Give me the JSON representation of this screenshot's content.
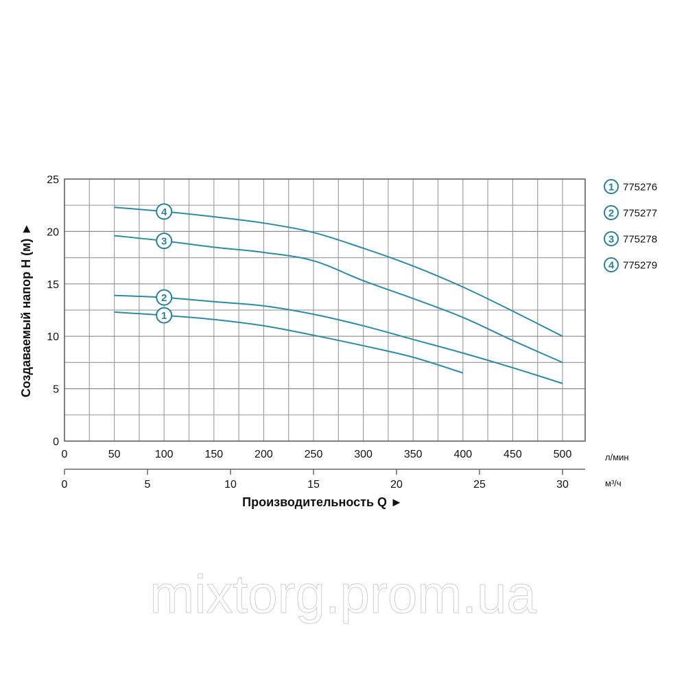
{
  "chart_data": {
    "type": "line",
    "title": "",
    "xlabel": "Производительность Q ►",
    "ylabel": "Создаваемый напор H (м) ►",
    "x_unit_primary": "л/мин",
    "x_unit_secondary": "м³/ч",
    "xlim": [
      0,
      525
    ],
    "ylim": [
      0,
      25
    ],
    "x_ticks": [
      0,
      50,
      100,
      150,
      200,
      250,
      300,
      350,
      400,
      450,
      500
    ],
    "x_secondary_ticks": [
      0,
      5,
      10,
      15,
      20,
      25,
      30
    ],
    "y_ticks": [
      0,
      5,
      10,
      15,
      20,
      25
    ],
    "grid": true,
    "legend_position": "right",
    "series": [
      {
        "name": "775276",
        "marker": "1",
        "x": [
          50,
          100,
          150,
          200,
          250,
          300,
          350,
          400
        ],
        "values": [
          12.3,
          12.0,
          11.6,
          11.0,
          10.1,
          9.1,
          8.0,
          6.5
        ]
      },
      {
        "name": "775277",
        "marker": "2",
        "x": [
          50,
          100,
          150,
          200,
          250,
          300,
          350,
          400,
          450,
          500
        ],
        "values": [
          13.9,
          13.7,
          13.3,
          12.9,
          12.1,
          11.0,
          9.7,
          8.4,
          7.0,
          5.5
        ]
      },
      {
        "name": "775278",
        "marker": "3",
        "x": [
          50,
          100,
          150,
          200,
          250,
          300,
          350,
          400,
          450,
          500
        ],
        "values": [
          19.6,
          19.1,
          18.5,
          18.0,
          17.2,
          15.3,
          13.6,
          11.8,
          9.6,
          7.5
        ]
      },
      {
        "name": "775279",
        "marker": "4",
        "x": [
          50,
          100,
          150,
          200,
          250,
          300,
          350,
          400,
          450,
          500
        ],
        "values": [
          22.3,
          21.9,
          21.4,
          20.8,
          19.9,
          18.4,
          16.7,
          14.7,
          12.4,
          10.0
        ]
      }
    ]
  },
  "colors": {
    "curve": "#2a8aa8",
    "grid": "#a0a0a0",
    "frame": "#555555",
    "badge": "#2a7f99"
  },
  "watermark": "mixtorg.prom.ua"
}
